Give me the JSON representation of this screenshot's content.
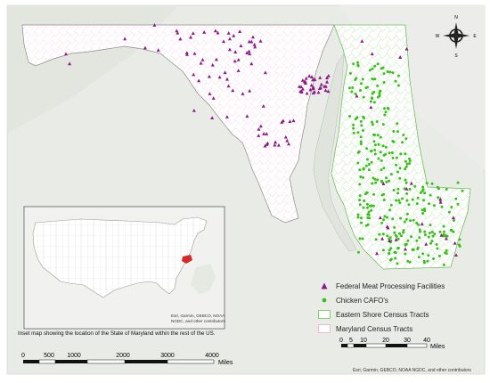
{
  "legend": {
    "items": [
      {
        "label": "Federal Meat Processing Facilities",
        "symbol": "triangle-icon",
        "color": "#8e1a8a"
      },
      {
        "label": "Chicken CAFO's",
        "symbol": "dot-icon",
        "color": "#3bbf1f"
      },
      {
        "label": "Eastern Shore Census Tracts",
        "symbol": "green-outline-box-icon",
        "color": "#7fd36a"
      },
      {
        "label": "Maryland Census Tracts",
        "symbol": "pink-outline-box-icon",
        "color": "#e9b9d6"
      }
    ]
  },
  "compass": {
    "n": "N",
    "s": "S",
    "e": "E",
    "w": "W"
  },
  "inset": {
    "caption": "Inset map showing the location of the State of Maryland within the rest of the US.",
    "attribution": "Esri, Garmin, GEBCO, NOAA NGDC, and other contributors",
    "highlight_color": "#d62728"
  },
  "scalebar_inset": {
    "ticks": [
      "0",
      "500",
      "1000",
      "2000",
      "3000",
      "4000"
    ],
    "unit": "Miles"
  },
  "scalebar_main": {
    "ticks": [
      "0",
      "5",
      "10",
      "20",
      "30",
      "40"
    ],
    "unit": "Miles"
  },
  "attribution": "Esri, Garmin, GEBCO, NOAA NGDC, and other contributors",
  "colors": {
    "western_fill": "#ffffff",
    "tract_line": "#e6b4d2",
    "eastern_line": "#86d46f",
    "meat": "#8e1a8a",
    "cafo": "#3bbf1f",
    "background": "#e9ebe6"
  }
}
